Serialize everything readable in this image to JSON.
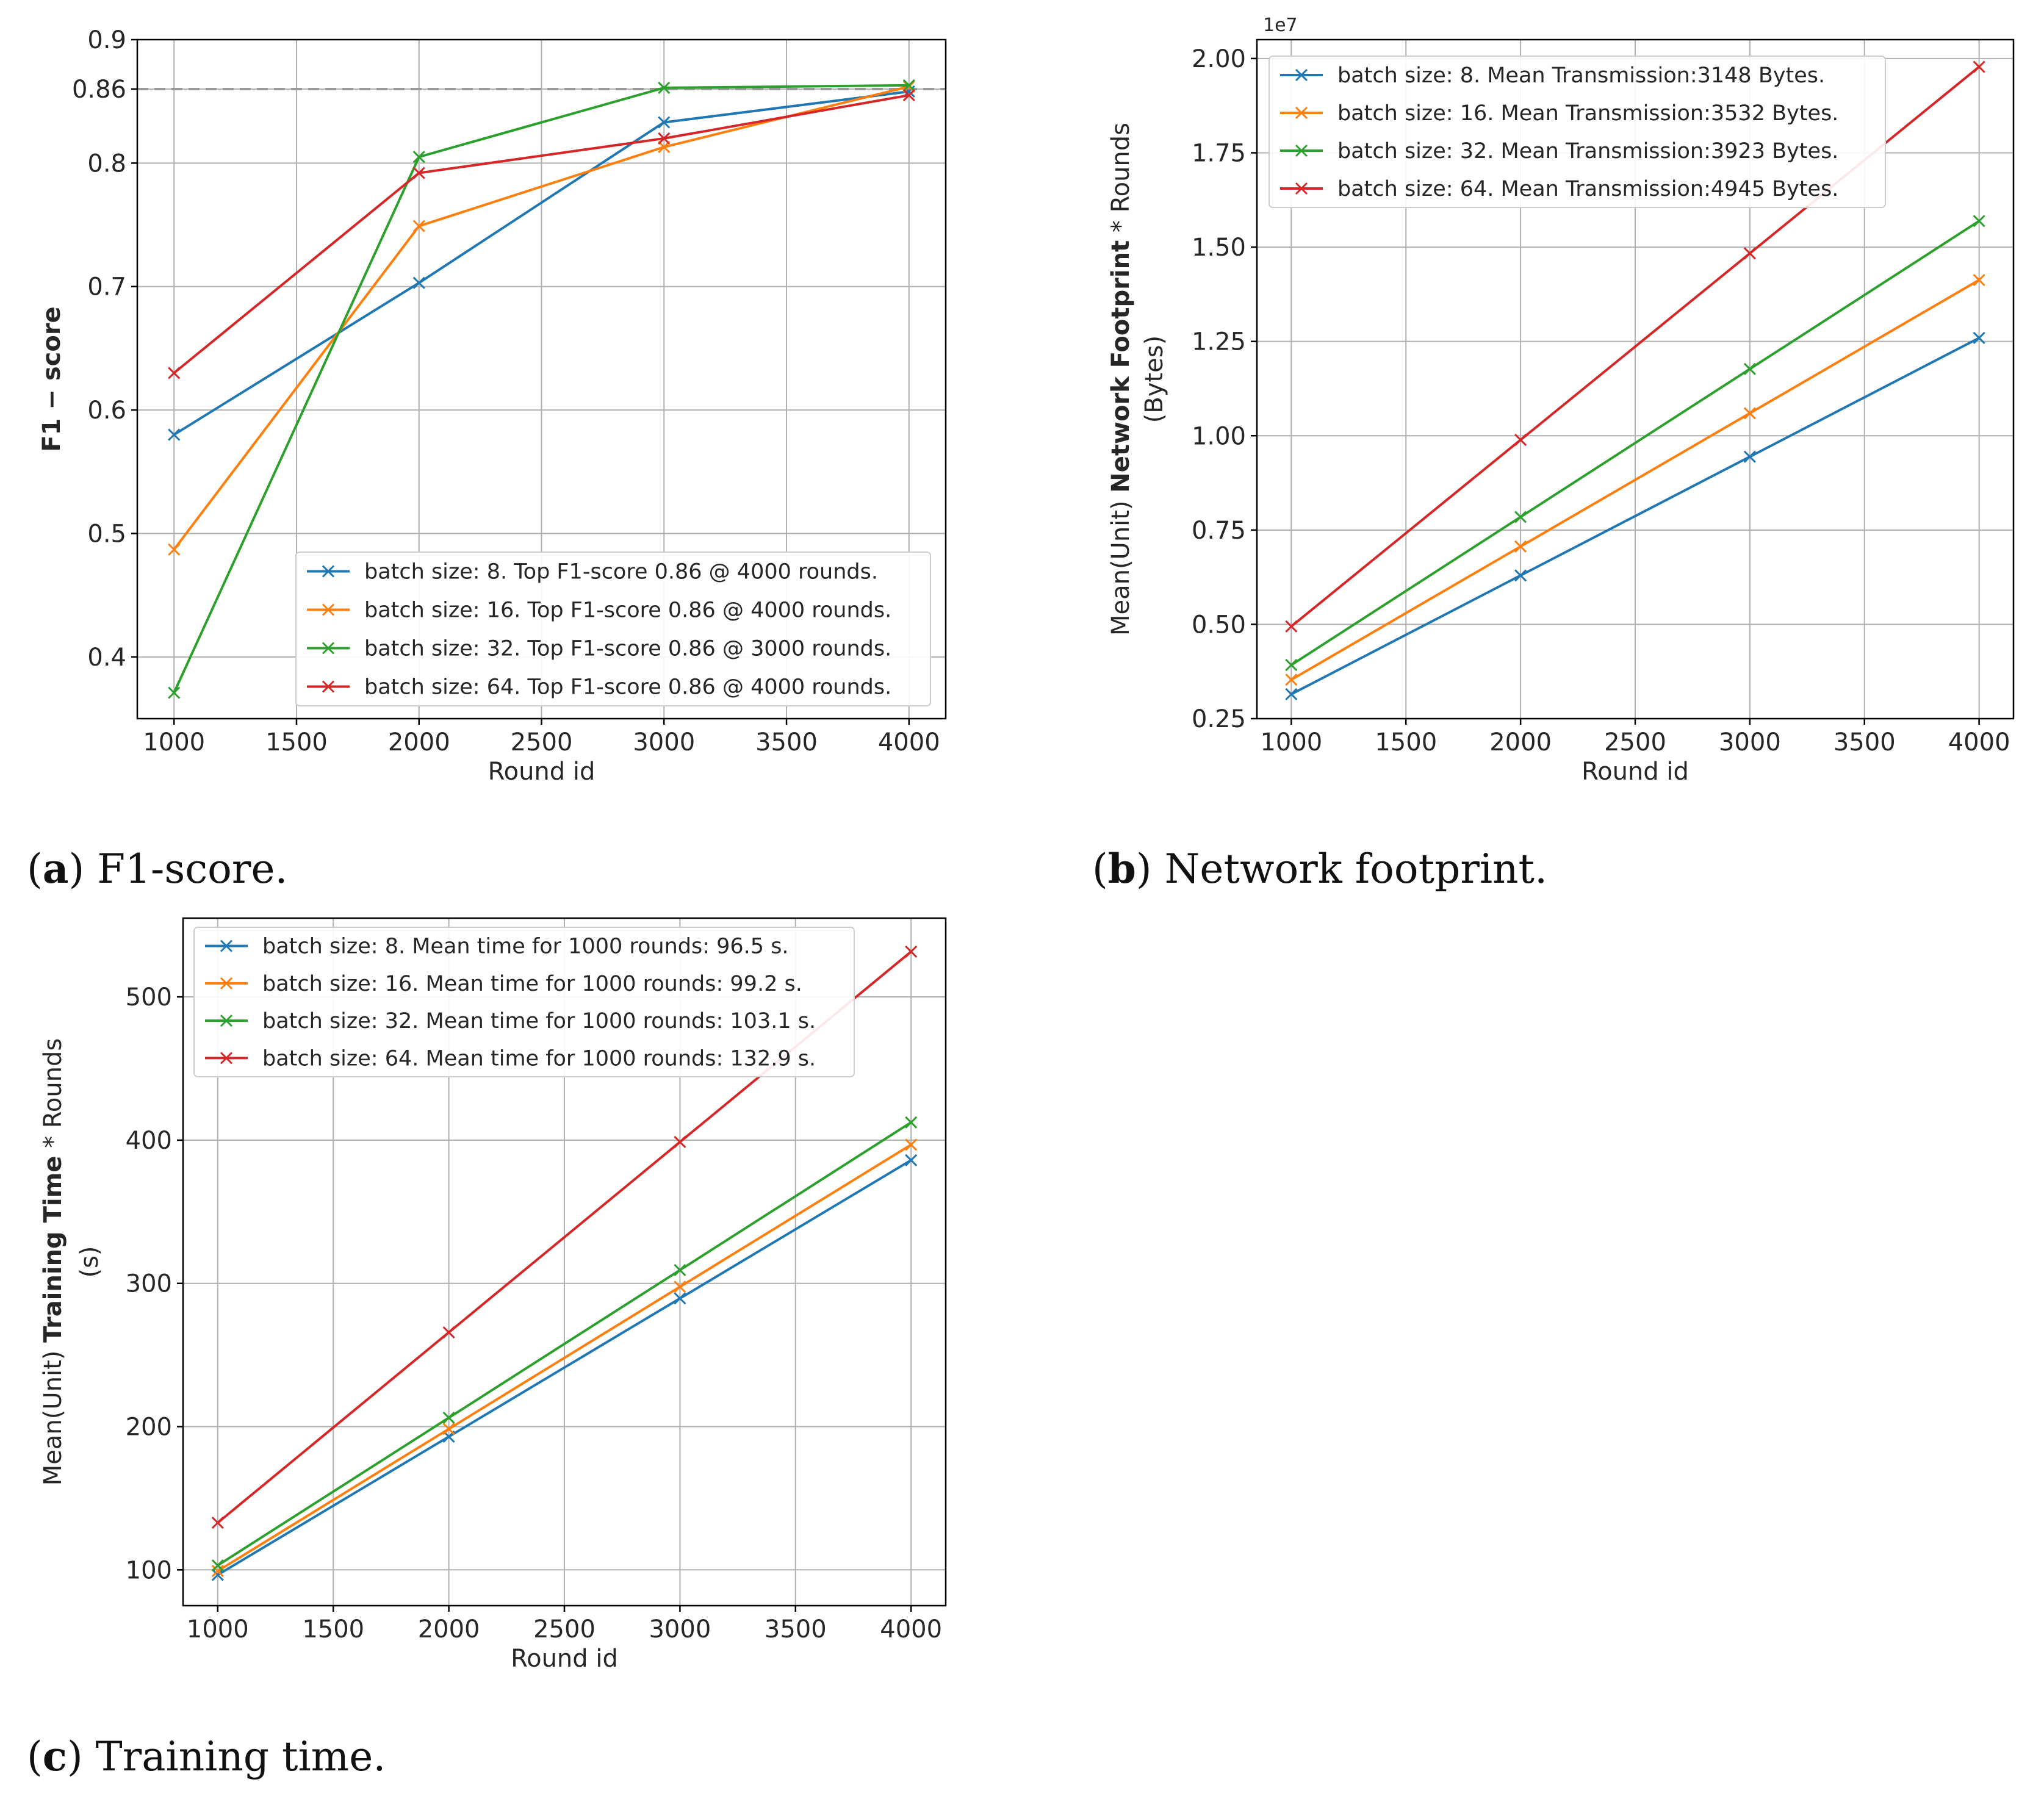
{
  "colors": {
    "s8": "#1f77b4",
    "s16": "#ff7f0e",
    "s32": "#2ca02c",
    "s64": "#d62728",
    "grid": "#b0b0b0",
    "ref": "#999999"
  },
  "captions": [
    {
      "letter": "a",
      "text": "F1-score."
    },
    {
      "letter": "b",
      "text": "Network footprint."
    },
    {
      "letter": "c",
      "text": "Training time."
    }
  ],
  "chart_data": [
    {
      "id": "a",
      "type": "line",
      "title": "",
      "xlabel": "Round id",
      "ylabel": "F1 − score",
      "xlim": [
        850,
        4150
      ],
      "ylim": [
        0.35,
        0.9
      ],
      "x_ticks": [
        1000,
        1500,
        2000,
        2500,
        3000,
        3500,
        4000
      ],
      "y_ticks": [
        0.4,
        0.5,
        0.6,
        0.7,
        0.8,
        0.86,
        0.9
      ],
      "y_tick_labels": [
        "0.4",
        "0.5",
        "0.6",
        "0.7",
        "0.8",
        "0.86",
        "0.9"
      ],
      "grid": true,
      "reference_line": {
        "y": 0.86,
        "style": "dashed"
      },
      "legend": "bottom-right",
      "x": [
        1000,
        2000,
        3000,
        4000
      ],
      "series": [
        {
          "name": "batch size: 8. Top F1-score 0.86 @ 4000 rounds.",
          "color_key": "s8",
          "values": [
            0.58,
            0.703,
            0.833,
            0.858
          ]
        },
        {
          "name": "batch size: 16. Top F1-score 0.86 @ 4000 rounds.",
          "color_key": "s16",
          "values": [
            0.487,
            0.749,
            0.813,
            0.862
          ]
        },
        {
          "name": "batch size: 32. Top F1-score 0.86 @ 3000 rounds.",
          "color_key": "s32",
          "values": [
            0.371,
            0.805,
            0.861,
            0.863
          ]
        },
        {
          "name": "batch size: 64. Top F1-score 0.86 @ 4000 rounds.",
          "color_key": "s64",
          "values": [
            0.63,
            0.792,
            0.82,
            0.855
          ]
        }
      ]
    },
    {
      "id": "b",
      "type": "line",
      "title": "",
      "xlabel": "Round id",
      "ylabel_prefix": "Mean(Unit) ",
      "ylabel_bold": "Network Footprint",
      "ylabel_suffix": " * Rounds",
      "ylabel_line2": "(Bytes)",
      "y_offset_label": "1e7",
      "xlim": [
        850,
        4150
      ],
      "ylim": [
        0.25,
        2.05
      ],
      "x_ticks": [
        1000,
        1500,
        2000,
        2500,
        3000,
        3500,
        4000
      ],
      "y_ticks": [
        0.25,
        0.5,
        0.75,
        1.0,
        1.25,
        1.5,
        1.75,
        2.0
      ],
      "y_tick_labels": [
        "0.25",
        "0.50",
        "0.75",
        "1.00",
        "1.25",
        "1.50",
        "1.75",
        "2.00"
      ],
      "grid": true,
      "legend": "top-left",
      "x": [
        1000,
        2000,
        3000,
        4000
      ],
      "series": [
        {
          "name": "batch size: 8. Mean Transmission:3148 Bytes.",
          "color_key": "s8",
          "values": [
            0.3148,
            0.6296,
            0.9444,
            1.2592
          ]
        },
        {
          "name": "batch size: 16. Mean Transmission:3532 Bytes.",
          "color_key": "s16",
          "values": [
            0.3532,
            0.7064,
            1.0596,
            1.4128
          ]
        },
        {
          "name": "batch size: 32. Mean Transmission:3923 Bytes.",
          "color_key": "s32",
          "values": [
            0.3923,
            0.7846,
            1.1769,
            1.5692
          ]
        },
        {
          "name": "batch size: 64. Mean Transmission:4945 Bytes.",
          "color_key": "s64",
          "values": [
            0.4945,
            0.989,
            1.4835,
            1.978
          ]
        }
      ]
    },
    {
      "id": "c",
      "type": "line",
      "title": "",
      "xlabel": "Round id",
      "ylabel_prefix": "Mean(Unit) ",
      "ylabel_bold": "Training Time",
      "ylabel_suffix": " * Rounds",
      "ylabel_line2": "(s)",
      "xlim": [
        850,
        4150
      ],
      "ylim": [
        75,
        555
      ],
      "x_ticks": [
        1000,
        1500,
        2000,
        2500,
        3000,
        3500,
        4000
      ],
      "y_ticks": [
        100,
        200,
        300,
        400,
        500
      ],
      "y_tick_labels": [
        "100",
        "200",
        "300",
        "400",
        "500"
      ],
      "grid": true,
      "legend": "top-left",
      "x": [
        1000,
        2000,
        3000,
        4000
      ],
      "series": [
        {
          "name": "batch size: 8. Mean time for 1000 rounds: 96.5 s.",
          "color_key": "s8",
          "values": [
            96.5,
            193,
            289.5,
            386
          ]
        },
        {
          "name": "batch size: 16. Mean time for 1000 rounds: 99.2 s.",
          "color_key": "s16",
          "values": [
            99.2,
            198.4,
            297.6,
            396.8
          ]
        },
        {
          "name": "batch size: 32. Mean time for 1000 rounds: 103.1 s.",
          "color_key": "s32",
          "values": [
            103.1,
            206.2,
            309.3,
            412.4
          ]
        },
        {
          "name": "batch size: 64. Mean time for 1000 rounds: 132.9 s.",
          "color_key": "s64",
          "values": [
            132.9,
            265.8,
            398.7,
            531.6
          ]
        }
      ]
    }
  ]
}
